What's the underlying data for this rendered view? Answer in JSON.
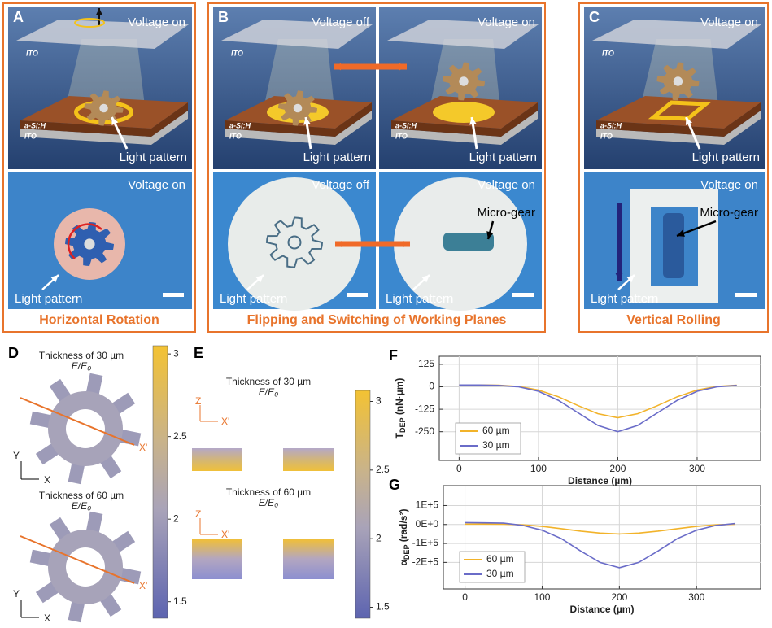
{
  "panel_a": {
    "letter": "A",
    "top": {
      "voltage": "Voltage on",
      "ito_top": "ITO",
      "a_si": "a-Si:H",
      "ito_bottom": "ITO",
      "light_pattern": "Light pattern"
    },
    "bottom": {
      "voltage": "Voltage on",
      "light_pattern": "Light pattern"
    },
    "caption": "Horizontal Rotation"
  },
  "panel_b": {
    "letter": "B",
    "top_left": {
      "voltage": "Voltage off",
      "ito_top": "ITO",
      "a_si": "a-Si:H",
      "ito_bottom": "ITO",
      "light_pattern": "Light pattern"
    },
    "top_right": {
      "voltage": "Voltage on",
      "a_si": "a-Si:H",
      "ito_bottom": "ITO",
      "light_pattern": "Light pattern"
    },
    "bottom_left": {
      "voltage": "Voltage off",
      "light_pattern": "Light pattern"
    },
    "bottom_right": {
      "voltage": "Voltage on",
      "micro_gear": "Micro-gear",
      "light_pattern": "Light pattern"
    },
    "caption": "Flipping and Switching of Working Planes"
  },
  "panel_c": {
    "letter": "C",
    "top": {
      "voltage": "Voltage on",
      "ito_top": "ITO",
      "a_si": "a-Si:H",
      "ito_bottom": "ITO",
      "light_pattern": "Light pattern"
    },
    "bottom": {
      "voltage": "Voltage on",
      "micro_gear": "Micro-gear",
      "light_pattern": "Light pattern"
    },
    "caption": "Vertical Rolling"
  },
  "panel_d": {
    "letter": "D",
    "thin": {
      "title": "Thickness of 30 µm",
      "quantity": "E/E₀",
      "cut_label": "X'",
      "axis_y": "Y",
      "axis_x": "X"
    },
    "thick": {
      "title": "Thickness of 60 µm",
      "quantity": "E/E₀",
      "cut_label": "X'",
      "axis_y": "Y",
      "axis_x": "X"
    },
    "colorbar": {
      "clim": [
        1.4,
        3.05
      ],
      "ticks": [
        3,
        2.5,
        2,
        1.5
      ]
    }
  },
  "panel_e": {
    "letter": "E",
    "thin": {
      "title": "Thickness of 30 µm",
      "quantity": "E/E₀",
      "axis_z": "Z",
      "axis_x": "X'"
    },
    "thick": {
      "title": "Thickness of 60 µm",
      "quantity": "E/E₀",
      "axis_z": "Z",
      "axis_x": "X'"
    },
    "colorbar": {
      "clim": [
        1.42,
        3.08
      ],
      "ticks": [
        3,
        2.5,
        2,
        1.5
      ]
    }
  },
  "chart_data": [
    {
      "type": "line",
      "letter": "F",
      "y_label": {
        "symbol": "T",
        "subscript": "DEP",
        "unit": " (nN·µm)"
      },
      "x_label": "Distance (µm)",
      "x": [
        0,
        25,
        50,
        75,
        100,
        125,
        150,
        175,
        200,
        225,
        250,
        275,
        300,
        325,
        350
      ],
      "series": [
        {
          "name": "60 µm",
          "color": "#f2b32a",
          "values": [
            10,
            10,
            9,
            2,
            -18,
            -55,
            -105,
            -150,
            -172,
            -150,
            -105,
            -55,
            -18,
            2,
            9
          ]
        },
        {
          "name": "30 µm",
          "color": "#6a6cc8",
          "values": [
            10,
            10,
            8,
            0,
            -25,
            -75,
            -145,
            -215,
            -250,
            -215,
            -145,
            -75,
            -25,
            0,
            8
          ]
        }
      ],
      "xlim": [
        -25,
        380
      ],
      "ylim": [
        -410,
        170
      ],
      "xticks": [
        0,
        100,
        200,
        300
      ],
      "yticks": [
        125,
        0,
        -125,
        -250
      ],
      "grid": true,
      "legend": "lower left"
    },
    {
      "type": "line",
      "letter": "G",
      "y_label": {
        "symbol": "α",
        "subscript": "DEP",
        "unit": " (rad/s²)"
      },
      "x_label": "Distance (µm)",
      "x": [
        0,
        25,
        50,
        75,
        100,
        125,
        150,
        175,
        200,
        225,
        250,
        275,
        300,
        325,
        350
      ],
      "series": [
        {
          "name": "60 µm",
          "color": "#f2b32a",
          "values": [
            2000,
            2000,
            1500,
            -2000,
            -10000,
            -22000,
            -35000,
            -45000,
            -50000,
            -45000,
            -35000,
            -22000,
            -10000,
            -2000,
            1500
          ]
        },
        {
          "name": "30 µm",
          "color": "#6a6cc8",
          "values": [
            10000,
            9000,
            7000,
            -5000,
            -30000,
            -75000,
            -140000,
            -200000,
            -228000,
            -200000,
            -140000,
            -75000,
            -30000,
            -5000,
            5000
          ]
        }
      ],
      "xlim": [
        -28,
        383
      ],
      "ylim": [
        -340000,
        205000
      ],
      "xticks": [
        0,
        100,
        200,
        300
      ],
      "yticks": [
        {
          "value": 100000,
          "label": "1E+5"
        },
        {
          "value": 0,
          "label": "0E+0"
        },
        {
          "value": -100000,
          "label": "-1E+5"
        },
        {
          "value": -200000,
          "label": "-2E+5"
        }
      ],
      "grid": true,
      "legend": "lower left"
    }
  ]
}
